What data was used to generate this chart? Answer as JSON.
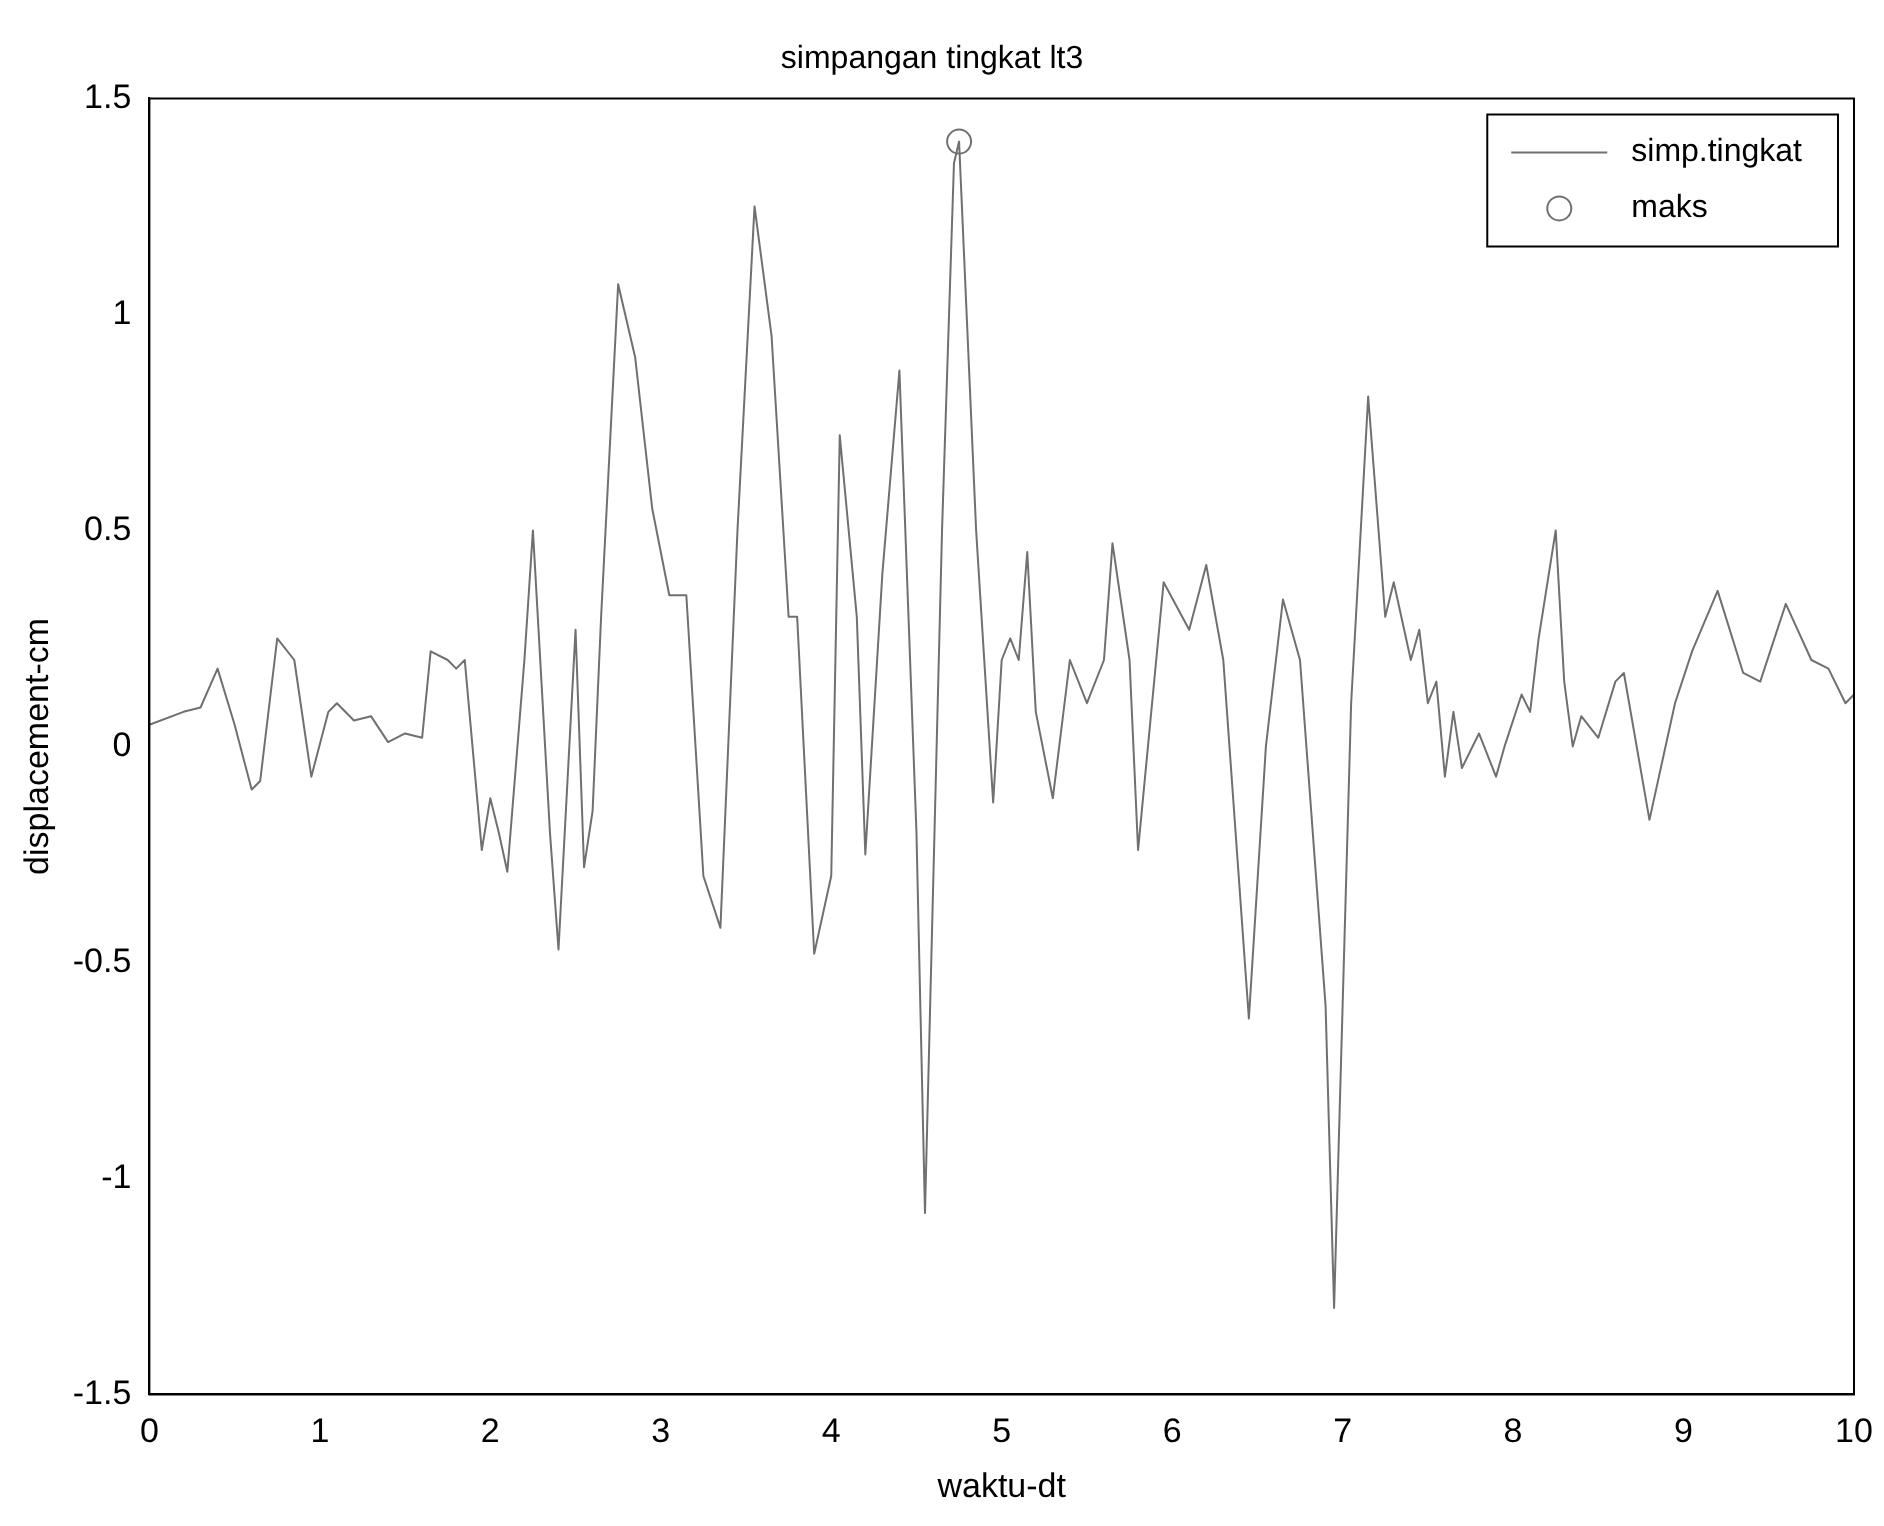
{
  "chart_data": {
    "type": "line",
    "title": "simpangan tingkat lt3",
    "xlabel": "waktu-dt",
    "ylabel": "displacement-cm",
    "xlim": [
      0,
      10
    ],
    "xticks": [
      0,
      1,
      2,
      3,
      4,
      5,
      6,
      7,
      8,
      9,
      10
    ],
    "ylim": [
      -1.5,
      1.5
    ],
    "yticks": [
      -1.5,
      -1,
      -0.5,
      0,
      0.5,
      1,
      1.5
    ],
    "grid": false,
    "legend": "top right",
    "series": [
      {
        "name": "simp.tingkat",
        "type": "line",
        "color": "#707070",
        "marker": "none",
        "x": [
          0,
          0.2,
          0.3,
          0.4,
          0.5,
          0.6,
          0.65,
          0.75,
          0.85,
          0.95,
          1.05,
          1.1,
          1.2,
          1.3,
          1.4,
          1.5,
          1.6,
          1.65,
          1.75,
          1.8,
          1.85,
          1.95,
          2.0,
          2.05,
          2.1,
          2.2,
          2.25,
          2.35,
          2.4,
          2.5,
          2.55,
          2.6,
          2.65,
          2.75,
          2.85,
          2.95,
          3.05,
          3.15,
          3.25,
          3.35,
          3.45,
          3.55,
          3.65,
          3.75,
          3.8,
          3.9,
          4.0,
          4.05,
          4.15,
          4.2,
          4.3,
          4.4,
          4.5,
          4.55,
          4.65,
          4.72,
          4.75,
          4.85,
          4.95,
          5.0,
          5.05,
          5.1,
          5.15,
          5.2,
          5.3,
          5.4,
          5.5,
          5.6,
          5.65,
          5.75,
          5.8,
          5.95,
          6.1,
          6.2,
          6.3,
          6.45,
          6.55,
          6.65,
          6.75,
          6.9,
          6.95,
          7.05,
          7.15,
          7.25,
          7.3,
          7.4,
          7.45,
          7.5,
          7.55,
          7.6,
          7.65,
          7.7,
          7.8,
          7.9,
          7.95,
          8.05,
          8.1,
          8.15,
          8.25,
          8.3,
          8.35,
          8.4,
          8.5,
          8.6,
          8.65,
          8.8,
          8.95,
          9.05,
          9.2,
          9.35,
          9.45,
          9.6,
          9.75,
          9.85,
          9.95,
          10
        ],
        "values": [
          0.05,
          0.08,
          0.09,
          0.18,
          0.05,
          -0.1,
          -0.08,
          0.25,
          0.2,
          -0.07,
          0.08,
          0.1,
          0.06,
          0.07,
          0.01,
          0.03,
          0.02,
          0.22,
          0.2,
          0.18,
          0.2,
          -0.24,
          -0.12,
          -0.2,
          -0.29,
          0.2,
          0.5,
          -0.2,
          -0.47,
          0.27,
          -0.28,
          -0.15,
          0.3,
          1.07,
          0.9,
          0.55,
          0.35,
          0.35,
          -0.3,
          -0.42,
          0.5,
          1.25,
          0.95,
          0.3,
          0.3,
          -0.48,
          -0.3,
          0.72,
          0.3,
          -0.25,
          0.4,
          0.87,
          -0.2,
          -1.08,
          0.5,
          1.35,
          1.4,
          0.5,
          -0.13,
          0.2,
          0.25,
          0.2,
          0.45,
          0.08,
          -0.12,
          0.2,
          0.1,
          0.2,
          0.47,
          0.2,
          -0.24,
          0.38,
          0.27,
          0.42,
          0.2,
          -0.63,
          0.0,
          0.34,
          0.2,
          -0.6,
          -1.3,
          0.1,
          0.81,
          0.3,
          0.38,
          0.2,
          0.27,
          0.1,
          0.15,
          -0.07,
          0.08,
          -0.05,
          0.03,
          -0.07,
          0.0,
          0.12,
          0.08,
          0.25,
          0.5,
          0.15,
          0.0,
          0.07,
          0.02,
          0.15,
          0.17,
          -0.17,
          0.1,
          0.22,
          0.36,
          0.17,
          0.15,
          0.33,
          0.2,
          0.18,
          0.1,
          0.12
        ]
      },
      {
        "name": "maks",
        "type": "scatter",
        "color": "#707070",
        "marker": "circle",
        "x": [
          4.75
        ],
        "values": [
          1.4
        ]
      }
    ]
  }
}
